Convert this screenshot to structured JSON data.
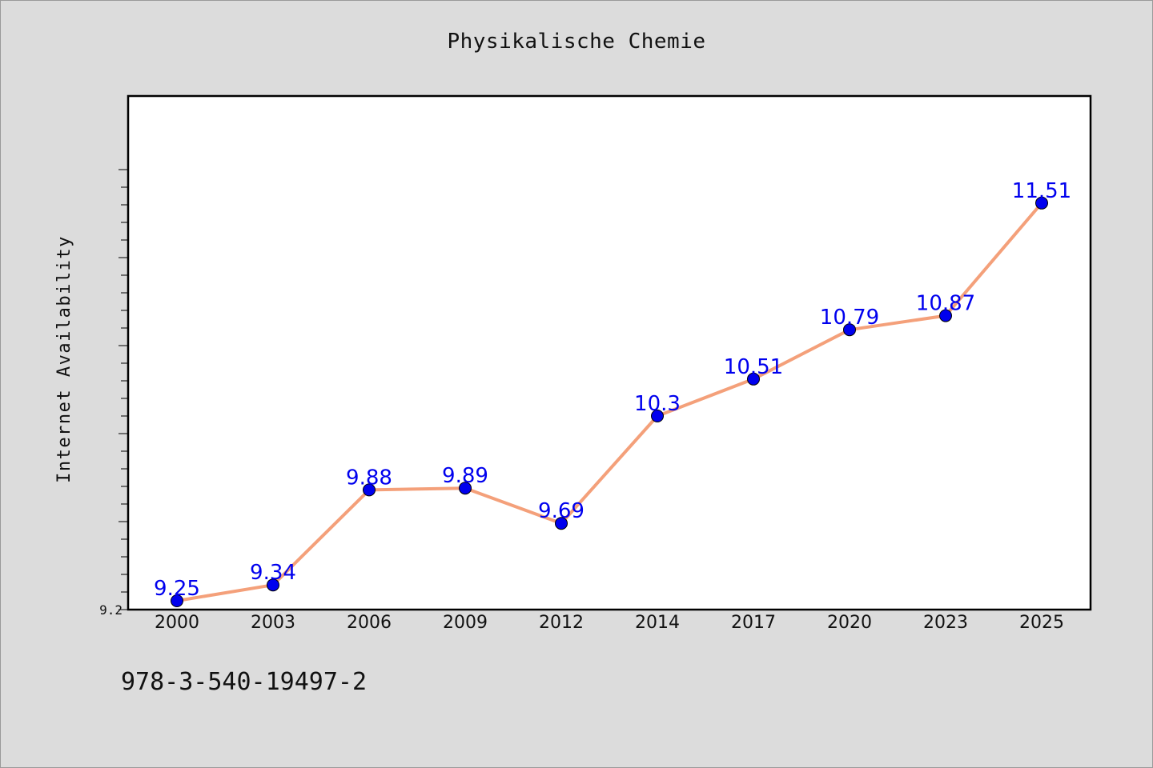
{
  "chart_data": {
    "type": "line",
    "title": "Physikalische Chemie",
    "xlabel": "",
    "ylabel": "Internet Availability",
    "categories": [
      "2000",
      "2003",
      "2006",
      "2009",
      "2012",
      "2014",
      "2017",
      "2020",
      "2023",
      "2025"
    ],
    "series": [
      {
        "values": [
          9.25,
          9.34,
          9.88,
          9.89,
          9.69,
          10.3,
          10.51,
          10.79,
          10.87,
          11.51
        ]
      }
    ],
    "ylim": [
      9.2,
      11.8
    ],
    "y_tick_labels": [
      "9.2"
    ],
    "grid": false,
    "line_color": "#f4a07a",
    "marker_color": "#0000ee",
    "label_color": "#0000ee"
  },
  "footer": {
    "code": "978-3-540-19497-2"
  }
}
